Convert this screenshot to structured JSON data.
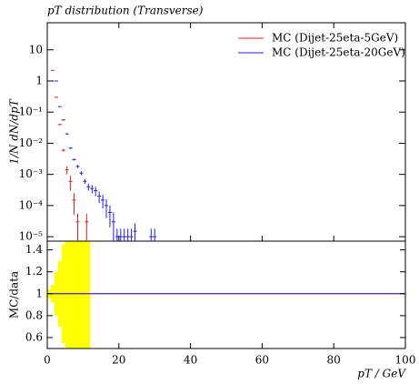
{
  "chart_data": {
    "type": "errorbar",
    "title": "pT distribution (Transverse)",
    "ylabel": "1/N dN/dpT",
    "xlabel": "pT / GeV",
    "ratio_ylabel": "MC/data",
    "log_y": true,
    "legend": "upper right",
    "xlim": [
      0,
      100
    ],
    "xticks": [
      0,
      20,
      40,
      60,
      80,
      100
    ],
    "ylim": [
      7.2e-06,
      74
    ],
    "yticks": [
      {
        "value": 1e-05,
        "label": "10⁻⁵"
      },
      {
        "value": 0.0001,
        "label": "10⁻⁴"
      },
      {
        "value": 0.001,
        "label": "10⁻³"
      },
      {
        "value": 0.01,
        "label": "10⁻²"
      },
      {
        "value": 0.1,
        "label": "10⁻¹"
      },
      1,
      10
    ],
    "series": [
      {
        "name": "MC (Dijet-25eta-5GeV)",
        "color": "#e02020",
        "x": [
          1.5,
          2.5,
          3.5,
          4.5,
          5.5,
          6.5,
          7.5,
          8.5,
          11
        ],
        "values": [
          2.2,
          0.3,
          0.04,
          0.006,
          0.0014,
          0.0006,
          0.00015,
          3e-05,
          3e-05
        ],
        "errors": [
          0.05,
          0.01,
          0.002,
          0.0006,
          0.0004,
          0.0003,
          0.0001,
          2.5e-05,
          2.5e-05
        ]
      },
      {
        "name": "MC (Dijet-25eta-20GeV)",
        "color": "#2020e0",
        "x": [
          2.5,
          3.5,
          4.5,
          5.5,
          6.5,
          7.5,
          8.5,
          9.5,
          10.5,
          11.5,
          12.5,
          13.5,
          14.5,
          15.5,
          16.5,
          17.5,
          18.5,
          19.5,
          20.5,
          21.5,
          22.5,
          23.5,
          24.5,
          29,
          30
        ],
        "values": [
          1,
          0.15,
          0.056,
          0.02,
          0.007,
          0.003,
          0.0018,
          0.0011,
          0.0006,
          0.0004,
          0.00035,
          0.0003,
          0.0002,
          0.00015,
          0.0001,
          6e-05,
          3e-05,
          1e-05,
          1e-05,
          1e-05,
          1e-05,
          1e-05,
          1.5e-05,
          1e-05,
          1e-05
        ],
        "errors": [
          0.02,
          0.004,
          0.002,
          0.001,
          0.0004,
          0.0002,
          0.0002,
          0.00015,
          0.0001,
          0.0001,
          0.0001,
          0.0001,
          8e-05,
          7e-05,
          6e-05,
          4e-05,
          3e-05,
          8e-06,
          8e-06,
          8e-06,
          8e-06,
          8e-06,
          1.2e-05,
          8e-06,
          8e-06
        ]
      }
    ],
    "ratio": {
      "ylim": [
        0.5,
        1.48
      ],
      "yticks": [
        0.6,
        0.8,
        1,
        1.2,
        1.4
      ],
      "reference": 1,
      "band_color": "#ffff00",
      "bins": [
        0,
        1,
        2,
        3,
        4,
        5,
        6,
        7,
        8,
        9,
        10,
        11,
        12
      ],
      "errors": [
        0.04,
        0.08,
        0.2,
        0.3,
        0.45,
        1,
        1,
        1,
        0.6,
        1,
        1,
        1
      ]
    }
  }
}
